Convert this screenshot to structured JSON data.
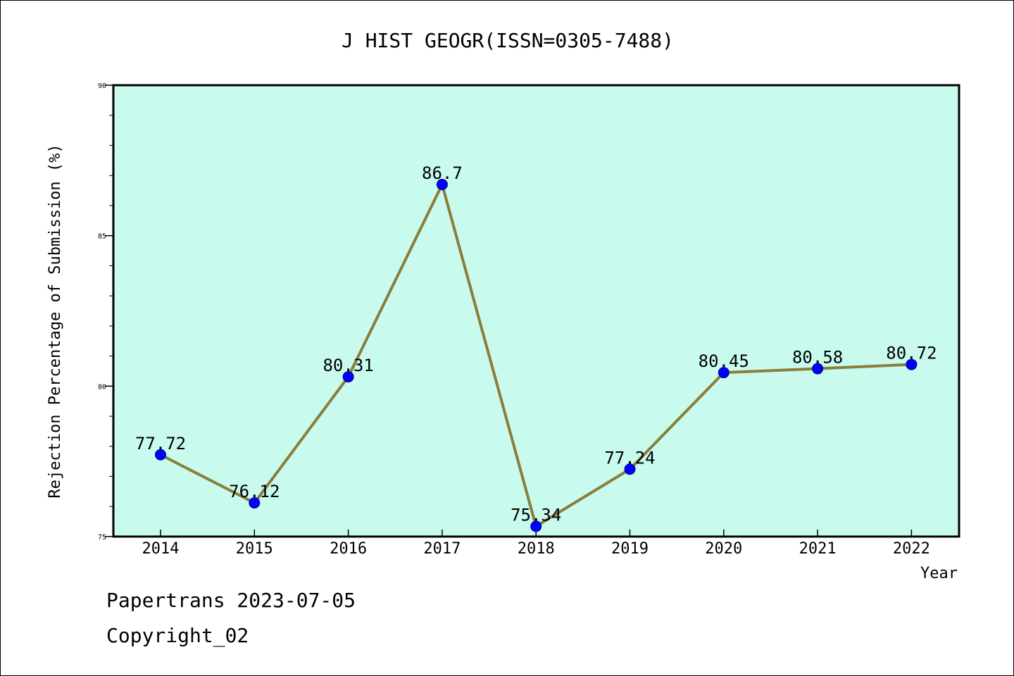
{
  "chart_data": {
    "type": "line",
    "title": "J HIST GEOGR(ISSN=0305-7488)",
    "xlabel": "Year",
    "ylabel": "Rejection Percentage of Submission (%)",
    "categories": [
      "2014",
      "2015",
      "2016",
      "2017",
      "2018",
      "2019",
      "2020",
      "2021",
      "2022"
    ],
    "values": [
      77.72,
      76.12,
      80.31,
      86.7,
      75.34,
      77.24,
      80.45,
      80.58,
      80.72
    ],
    "data_labels": [
      "77.72",
      "76.12",
      "80.31",
      "86.7",
      "75.34",
      "77.24",
      "80.45",
      "80.58",
      "80.72"
    ],
    "ylim": [
      75,
      90
    ],
    "yticks": [
      75,
      80,
      85,
      90
    ],
    "grid": false,
    "colors": {
      "plot_background": "#c8fbee",
      "line": "#8b7d3a",
      "marker": "#0000ff",
      "page_background": "#ffffff"
    }
  },
  "footer": {
    "line1": "Papertrans 2023-07-05",
    "line2": "Copyright_02"
  }
}
